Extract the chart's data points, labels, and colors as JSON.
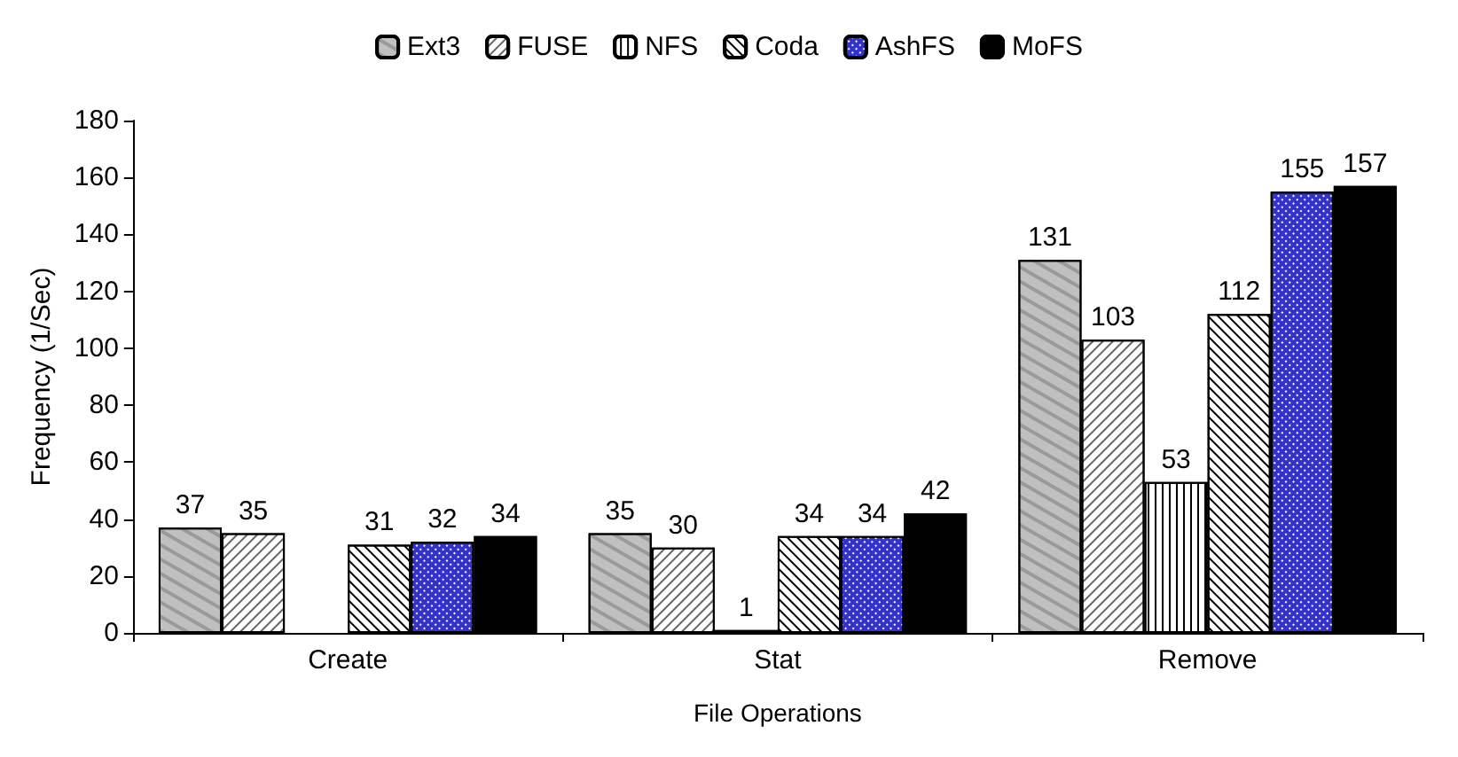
{
  "chart_data": {
    "type": "bar",
    "xlabel": "File Operations",
    "ylabel": "Frequency (1/Sec)",
    "categories": [
      "Create",
      "Stat",
      "Remove"
    ],
    "series": [
      {
        "name": "Ext3",
        "color": "#c0c0c0",
        "values": [
          37,
          35,
          131
        ]
      },
      {
        "name": "FUSE",
        "color": "#ffffff",
        "values": [
          35,
          30,
          103
        ]
      },
      {
        "name": "NFS",
        "color": "#ffffff",
        "values": [
          null,
          1,
          53
        ]
      },
      {
        "name": "Coda",
        "color": "#ffffff",
        "values": [
          31,
          34,
          112
        ]
      },
      {
        "name": "AshFS",
        "color": "#3333cc",
        "values": [
          32,
          34,
          155
        ]
      },
      {
        "name": "MoFS",
        "color": "#000000",
        "values": [
          34,
          42,
          157
        ]
      }
    ],
    "ylim": [
      0,
      180
    ],
    "yticks": [
      0,
      20,
      40,
      60,
      80,
      100,
      120,
      140,
      160,
      180
    ],
    "data_labels": true,
    "legend": "top",
    "grid": false
  }
}
